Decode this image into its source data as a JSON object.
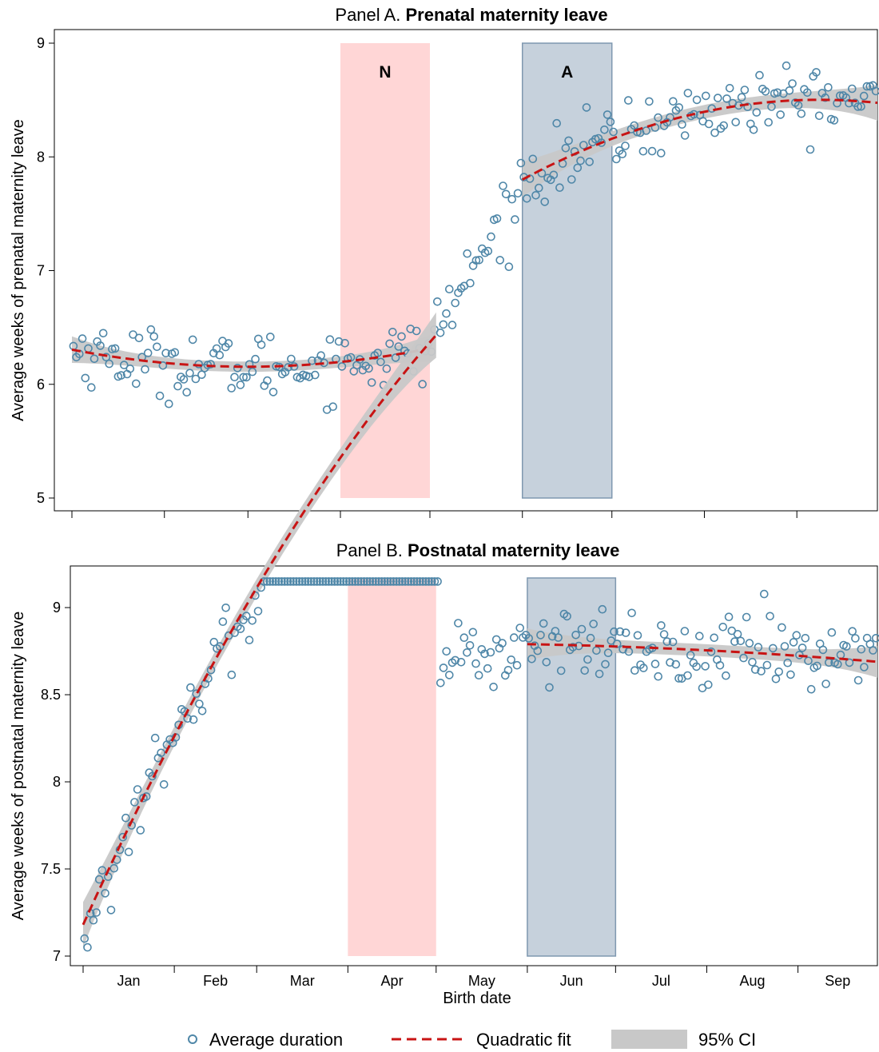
{
  "colors": {
    "point": "#4f87a8",
    "fit": "#c81414",
    "ci": "#c8c8c8",
    "band_N": "#ffd6d6",
    "band_A": "#c6d1dc",
    "band_A_stroke": "#7f98b0"
  },
  "x_label": "Birth date",
  "legend": {
    "points": "Average duration",
    "fit": "Quadratic fit",
    "ci": "95% CI"
  },
  "chart_data": [
    {
      "type": "scatter",
      "title_prefix": "Panel A. ",
      "title_bold": "Prenatal maternity leave",
      "ylabel": "Average weeks of prenatal maternity leave",
      "ylim": [
        5,
        9
      ],
      "yticks": [
        "5",
        "6",
        "7",
        "8",
        "9"
      ],
      "xlim": [
        0,
        270
      ],
      "month_ticks": [
        0,
        31,
        59,
        90,
        120,
        151,
        181,
        212,
        243
      ],
      "month_labels": [],
      "bands": [
        {
          "label": "N",
          "x": [
            90,
            120
          ]
        },
        {
          "label": "A",
          "x": [
            151,
            181
          ]
        }
      ],
      "fit_segments": [
        {
          "x": [
            0,
            120
          ],
          "a": 6.305,
          "b": -0.0051,
          "c": 4.33e-05,
          "x0": 0,
          "ci": 0.045
        },
        {
          "x": [
            151,
            270
          ],
          "a": 7.8,
          "b": 0.0141,
          "c": -7.08e-05,
          "x0": 151,
          "ci": 0.06
        }
      ],
      "points_summary": "about 270 daily averages scattered around the fitted curves",
      "series": [
        {
          "name": "Average duration",
          "profile": "prenatal",
          "noise": 0.19
        }
      ]
    },
    {
      "type": "scatter",
      "title_prefix": "Panel B. ",
      "title_bold": "Postnatal maternity leave",
      "ylabel": "Average weeks of postnatal maternity leave",
      "ylim": [
        7,
        9.17
      ],
      "yticks": [
        "7",
        "7.5",
        "8",
        "8.5",
        "9"
      ],
      "xlim": [
        0,
        270
      ],
      "month_ticks": [
        0,
        31,
        59,
        90,
        120,
        151,
        181,
        212,
        243
      ],
      "month_labels": [
        "Jan",
        "Feb",
        "Mar",
        "Apr",
        "May",
        "Jun",
        "Jul",
        "Aug",
        "Sep"
      ],
      "bands": [
        {
          "label": "",
          "x": [
            90,
            120
          ]
        },
        {
          "label": "",
          "x": [
            151,
            181
          ]
        }
      ],
      "fit_segments": [
        {
          "x": [
            0,
            120
          ],
          "a": 7.18,
          "b": 0.0372,
          "c": -7.5e-05,
          "x0": 0,
          "ci": 0.05
        },
        {
          "x": [
            151,
            270
          ],
          "a": 8.79,
          "b": -0.0003,
          "c": -4.6e-06,
          "x0": 151,
          "ci": 0.035
        }
      ],
      "points_summary": "about 270 daily averages scattered around the fitted curves",
      "series": [
        {
          "name": "Average duration",
          "profile": "postnatal",
          "noise": 0.14
        }
      ]
    }
  ]
}
